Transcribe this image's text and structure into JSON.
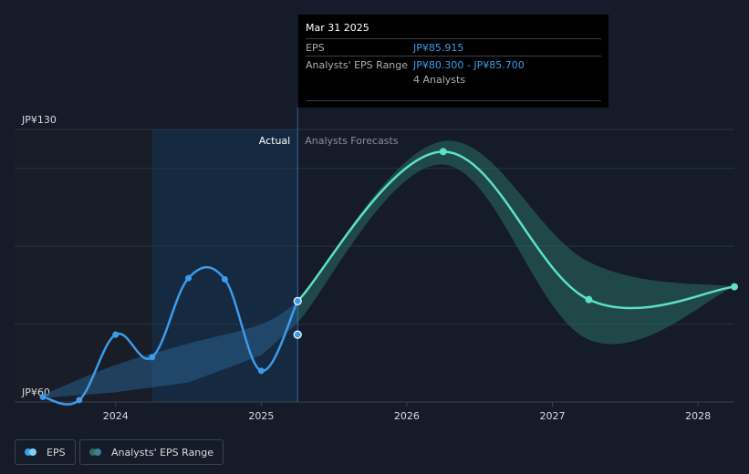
{
  "chart_data": {
    "type": "line",
    "y_axis": {
      "min": 60,
      "max": 130,
      "ticks": [
        {
          "value": 130,
          "label": "JP¥130"
        },
        {
          "value": 60,
          "label": "JP¥60"
        }
      ]
    },
    "x_axis": {
      "ticks": [
        {
          "value": 2024.0,
          "label": "2024"
        },
        {
          "value": 2025.0,
          "label": "2025"
        },
        {
          "value": 2026.0,
          "label": "2026"
        },
        {
          "value": 2027.0,
          "label": "2027"
        },
        {
          "value": 2028.0,
          "label": "2028"
        }
      ]
    },
    "sections": {
      "actual": "Actual",
      "forecast": "Analysts Forecasts",
      "divider_x": 2025.25
    },
    "series": [
      {
        "name": "EPS",
        "color": "#3d9be9",
        "points": [
          {
            "x": 2023.5,
            "y": 61.3
          },
          {
            "x": 2023.75,
            "y": 60.5
          },
          {
            "x": 2024.0,
            "y": 77.3
          },
          {
            "x": 2024.25,
            "y": 71.5
          },
          {
            "x": 2024.5,
            "y": 91.8
          },
          {
            "x": 2024.75,
            "y": 91.5
          },
          {
            "x": 2025.0,
            "y": 68.0
          },
          {
            "x": 2025.25,
            "y": 85.9
          }
        ]
      },
      {
        "name": "EPS Forecast",
        "color": "#5ce1c9",
        "points": [
          {
            "x": 2025.25,
            "y": 85.9
          },
          {
            "x": 2026.25,
            "y": 124.3
          },
          {
            "x": 2027.25,
            "y": 86.3
          },
          {
            "x": 2028.25,
            "y": 89.6
          }
        ]
      }
    ],
    "range_band": {
      "name": "Analysts' EPS Range",
      "color": "#2a6e62",
      "points": [
        {
          "x": 2025.25,
          "low": 80.3,
          "high": 85.7
        },
        {
          "x": 2026.25,
          "low": 121.0,
          "high": 127.0
        },
        {
          "x": 2027.25,
          "low": 76.0,
          "high": 96.0
        },
        {
          "x": 2028.25,
          "low": 89.6,
          "high": 89.6
        }
      ]
    },
    "actual_band": {
      "color": "#2a5d8a",
      "points": [
        {
          "x": 2023.5,
          "low": 61.0,
          "high": 61.8
        },
        {
          "x": 2024.0,
          "low": 62.5,
          "high": 69.5
        },
        {
          "x": 2024.5,
          "low": 65.0,
          "high": 75.0
        },
        {
          "x": 2025.0,
          "low": 72.0,
          "high": 80.0
        },
        {
          "x": 2025.25,
          "low": 80.3,
          "high": 85.7
        }
      ]
    },
    "markers": [
      {
        "x": 2025.25,
        "y": 85.9,
        "color": "#3d9be9"
      },
      {
        "x": 2025.25,
        "y": 77.3,
        "color": "#3d9be9"
      },
      {
        "x": 2026.25,
        "y": 124.3,
        "color": "#5ce1c9"
      },
      {
        "x": 2027.25,
        "y": 86.3,
        "color": "#5ce1c9"
      },
      {
        "x": 2028.25,
        "y": 89.6,
        "color": "#5ce1c9"
      }
    ],
    "legend": [
      {
        "label": "EPS",
        "colors": [
          "#3d9be9",
          "#7fd2f0"
        ]
      },
      {
        "label": "Analysts' EPS Range",
        "colors": [
          "#2a6e62",
          "#3c7f92"
        ]
      }
    ]
  },
  "tooltip": {
    "date": "Mar 31 2025",
    "rows": [
      {
        "key": "EPS",
        "value": "JP¥85.915"
      },
      {
        "key": "Analysts' EPS Range",
        "value": "JP¥80.300 - JP¥85.700"
      }
    ],
    "analysts": "4 Analysts"
  }
}
